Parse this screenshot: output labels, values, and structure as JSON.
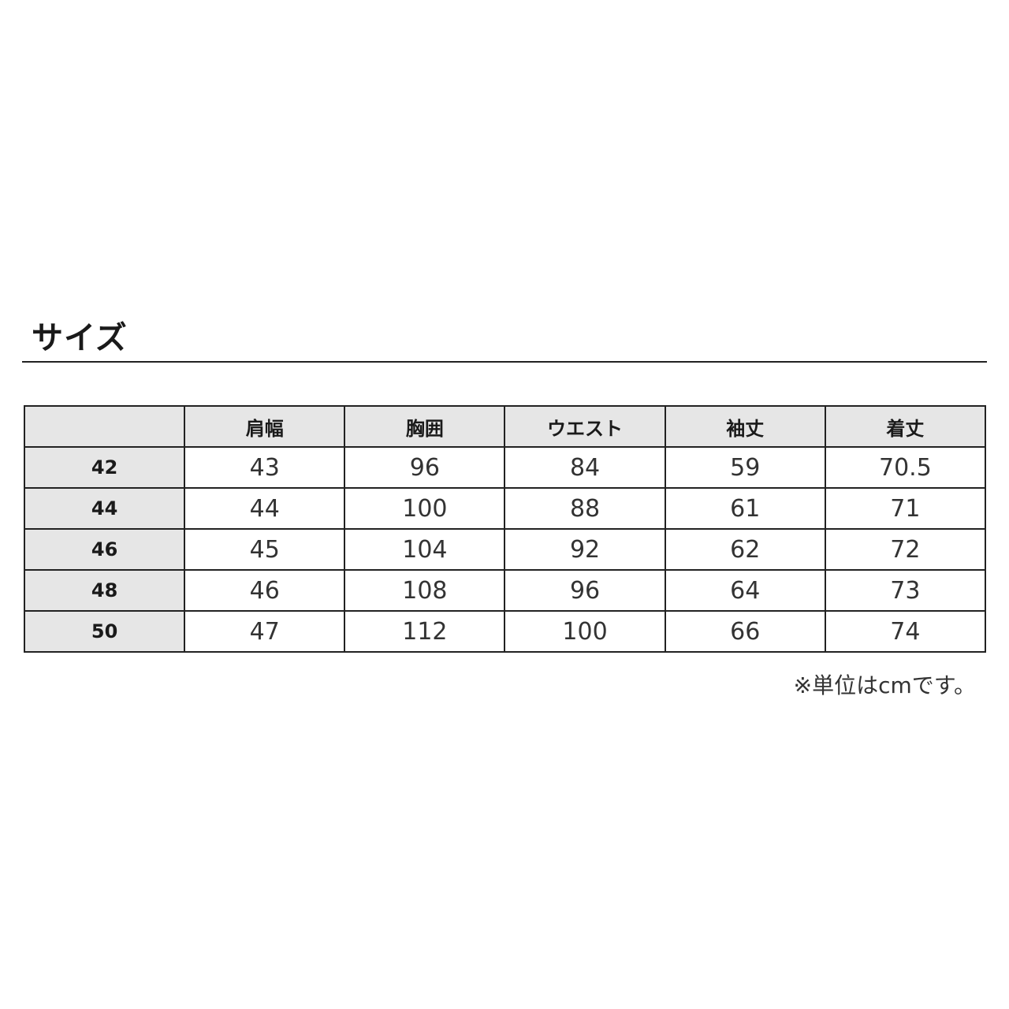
{
  "title": "サイズ",
  "table": {
    "headers": [
      "",
      "肩幅",
      "胸囲",
      "ウエスト",
      "袖丈",
      "着丈"
    ],
    "rows": [
      {
        "size": "42",
        "values": [
          "43",
          "96",
          "84",
          "59",
          "70.5"
        ]
      },
      {
        "size": "44",
        "values": [
          "44",
          "100",
          "88",
          "61",
          "71"
        ]
      },
      {
        "size": "46",
        "values": [
          "45",
          "104",
          "92",
          "62",
          "72"
        ]
      },
      {
        "size": "48",
        "values": [
          "46",
          "108",
          "96",
          "64",
          "73"
        ]
      },
      {
        "size": "50",
        "values": [
          "47",
          "112",
          "100",
          "66",
          "74"
        ]
      }
    ]
  },
  "note": "※単位はcmです。"
}
